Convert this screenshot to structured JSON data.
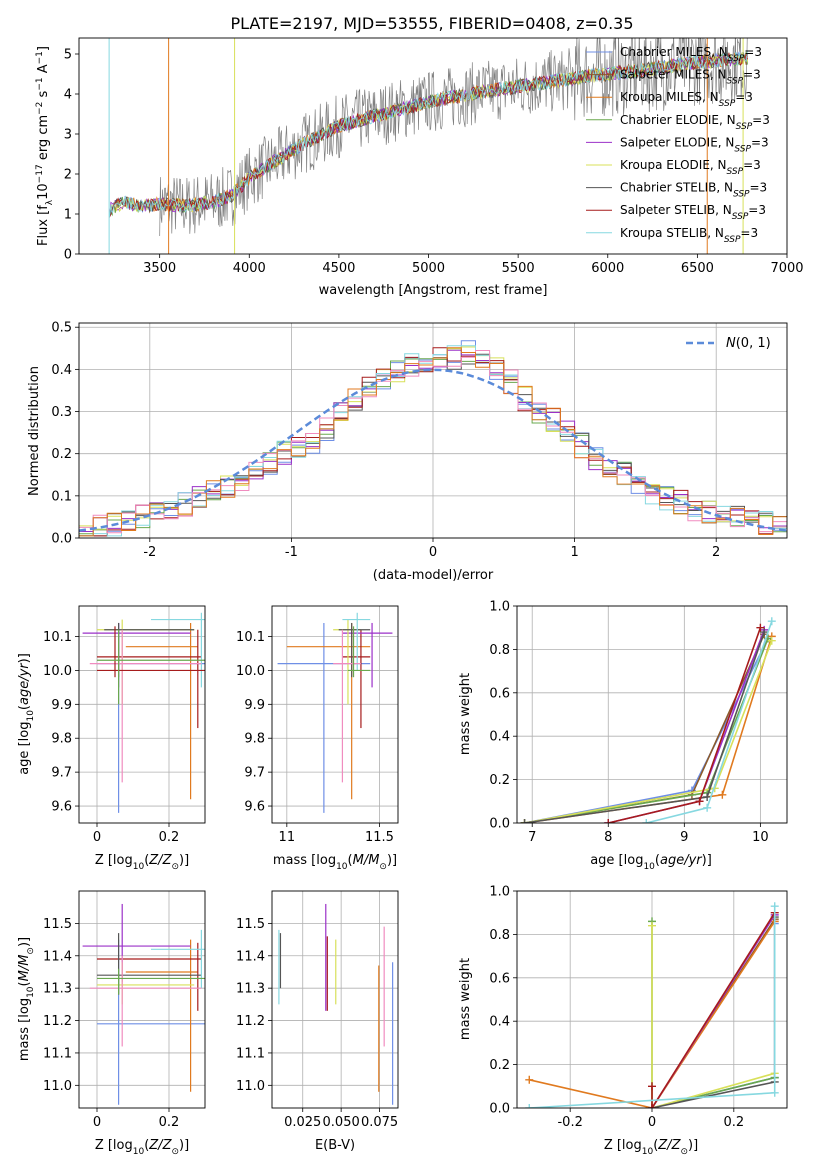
{
  "figure_title": "PLATE=2197, MJD=53555, FIBERID=0408, z=0.35",
  "colors": {
    "Chabrier MILES": "#6f8fe6",
    "Salpeter MILES": "#8b5a2b",
    "Kroupa MILES": "#e07a1f",
    "Chabrier ELODIE": "#6aa84f",
    "Salpeter ELODIE": "#9b30c8",
    "Kroupa ELODIE": "#d8e05a",
    "Chabrier STELIB": "#555555",
    "Salpeter STELIB": "#a61c1c",
    "Kroupa STELIB": "#86d8e0",
    "data": "#808080",
    "normal": "#5b8bd9",
    "pink": "#f08cbf"
  },
  "chart_data": [
    {
      "type": "line",
      "title": "PLATE=2197, MJD=53555, FIBERID=0408, z=0.35",
      "xlabel": "wavelength [Angstrom, rest frame]",
      "ylabel": "Flux [f_λ 10^-17 erg cm^-2 s^-1 A^-1]",
      "xlim": [
        3050,
        7000
      ],
      "ylim": [
        0,
        5.4
      ],
      "xticks": [
        3500,
        4000,
        4500,
        5000,
        5500,
        6000,
        6500,
        7000
      ],
      "yticks": [
        0,
        1,
        2,
        3,
        4,
        5
      ],
      "legend": "right",
      "legend_entries": [
        "Chabrier MILES, N_SSP=3",
        "Salpeter MILES, N_SSP=3",
        "Kroupa MILES, N_SSP=3",
        "Chabrier ELODIE, N_SSP=3",
        "Salpeter ELODIE, N_SSP=3",
        "Kroupa ELODIE, N_SSP=3",
        "Chabrier STELIB, N_SSP=3",
        "Salpeter STELIB, N_SSP=3",
        "Kroupa STELIB, N_SSP=3"
      ],
      "model_continuum": {
        "x": [
          3220,
          3300,
          3400,
          3500,
          3650,
          3800,
          3900,
          4000,
          4100,
          4300,
          4500,
          4700,
          5000,
          5300,
          5600,
          5900,
          6200,
          6500,
          6780
        ],
        "y": [
          1.1,
          1.3,
          1.2,
          1.25,
          1.2,
          1.3,
          1.45,
          1.9,
          2.2,
          2.75,
          3.2,
          3.45,
          3.8,
          4.05,
          4.25,
          4.45,
          4.6,
          4.8,
          4.9
        ]
      }
    },
    {
      "type": "bar",
      "xlabel": "(data-model)/error",
      "ylabel": "Normed distribution",
      "xlim": [
        -2.5,
        2.5
      ],
      "ylim": [
        0,
        0.51
      ],
      "xticks": [
        -2,
        -1,
        0,
        1,
        2
      ],
      "yticks": [
        0.0,
        0.1,
        0.2,
        0.3,
        0.4,
        0.5
      ],
      "legend": "top-right",
      "legend_entries": [
        "N(0,1)"
      ],
      "bin_centers": [
        -2.45,
        -2.35,
        -2.25,
        -2.15,
        -2.05,
        -1.95,
        -1.85,
        -1.75,
        -1.65,
        -1.55,
        -1.45,
        -1.35,
        -1.25,
        -1.15,
        -1.05,
        -0.95,
        -0.85,
        -0.75,
        -0.65,
        -0.55,
        -0.45,
        -0.35,
        -0.25,
        -0.15,
        -0.05,
        0.05,
        0.15,
        0.25,
        0.35,
        0.45,
        0.55,
        0.65,
        0.75,
        0.85,
        0.95,
        1.05,
        1.15,
        1.25,
        1.35,
        1.45,
        1.55,
        1.65,
        1.75,
        1.85,
        1.95,
        2.05,
        2.15,
        2.25,
        2.35,
        2.45
      ],
      "histogram": [
        0.022,
        0.025,
        0.03,
        0.04,
        0.05,
        0.06,
        0.075,
        0.08,
        0.1,
        0.11,
        0.125,
        0.14,
        0.16,
        0.175,
        0.2,
        0.215,
        0.23,
        0.26,
        0.3,
        0.33,
        0.36,
        0.38,
        0.4,
        0.41,
        0.42,
        0.43,
        0.43,
        0.44,
        0.43,
        0.4,
        0.37,
        0.33,
        0.3,
        0.28,
        0.25,
        0.22,
        0.19,
        0.17,
        0.15,
        0.13,
        0.11,
        0.095,
        0.085,
        0.07,
        0.06,
        0.055,
        0.045,
        0.04,
        0.035,
        0.03
      ]
    },
    {
      "type": "scatter",
      "xlabel": "Z [log10(Z/Z_⊙)]",
      "ylabel": "age  [log10(age/yr)]",
      "xlim": [
        -0.05,
        0.3
      ],
      "ylim": [
        9.55,
        10.19
      ],
      "xticks": [
        0.0,
        0.2
      ],
      "yticks": [
        9.6,
        9.7,
        9.8,
        9.9,
        10.0,
        10.1
      ]
    },
    {
      "type": "scatter",
      "xlabel": "mass [log10(M/M_⊙)]",
      "ylabel": "",
      "xlim": [
        10.92,
        11.6
      ],
      "ylim": [
        9.55,
        10.19
      ],
      "xticks": [
        11.0,
        11.5
      ],
      "yticks": [
        9.6,
        9.7,
        9.8,
        9.9,
        10.0,
        10.1
      ]
    },
    {
      "type": "line",
      "xlabel": "age  [log10(age/yr)]",
      "ylabel": "mass weight",
      "xlim": [
        6.8,
        10.35
      ],
      "ylim": [
        0,
        1
      ],
      "xticks": [
        7,
        8,
        9,
        10
      ],
      "yticks": [
        0.0,
        0.2,
        0.4,
        0.6,
        0.8,
        1.0
      ],
      "series": [
        {
          "x": [
            6.9,
            9.1,
            10.1
          ],
          "y": [
            0.0,
            0.15,
            0.85
          ]
        },
        {
          "x": [
            6.9,
            9.1,
            10.05
          ],
          "y": [
            0.0,
            0.13,
            0.87
          ]
        },
        {
          "x": [
            6.9,
            9.5,
            10.15
          ],
          "y": [
            0.0,
            0.13,
            0.86
          ]
        },
        {
          "x": [
            6.9,
            9.3,
            10.1
          ],
          "y": [
            0.0,
            0.14,
            0.85
          ]
        },
        {
          "x": [
            8.0,
            9.2,
            10.05
          ],
          "y": [
            0.0,
            0.1,
            0.89
          ]
        },
        {
          "x": [
            6.9,
            9.4,
            10.15
          ],
          "y": [
            0.0,
            0.16,
            0.84
          ]
        },
        {
          "x": [
            6.9,
            9.3,
            10.05
          ],
          "y": [
            0.0,
            0.12,
            0.88
          ]
        },
        {
          "x": [
            8.0,
            9.2,
            10.0
          ],
          "y": [
            0.0,
            0.1,
            0.9
          ]
        },
        {
          "x": [
            8.5,
            9.3,
            10.15
          ],
          "y": [
            0.0,
            0.07,
            0.93
          ]
        }
      ]
    },
    {
      "type": "scatter",
      "xlabel": "Z [log10(Z/Z_⊙)]",
      "ylabel": "mass [log10(M/M_⊙)]",
      "xlim": [
        -0.05,
        0.3
      ],
      "ylim": [
        10.93,
        11.6
      ],
      "xticks": [
        0.0,
        0.2
      ],
      "yticks": [
        11.0,
        11.1,
        11.2,
        11.3,
        11.4,
        11.5
      ]
    },
    {
      "type": "scatter",
      "xlabel": "E(B-V)",
      "ylabel": "",
      "xlim": [
        0.005,
        0.087
      ],
      "ylim": [
        10.93,
        11.6
      ],
      "xticks": [
        0.025,
        0.05,
        0.075
      ],
      "xtick_labels": [
        "0.025",
        "0.050",
        "0.075"
      ],
      "yticks": [
        11.0,
        11.1,
        11.2,
        11.3,
        11.4,
        11.5
      ]
    },
    {
      "type": "line",
      "xlabel": "Z [log10(Z/Z_⊙)]",
      "ylabel": "mass weight",
      "xlim": [
        -0.33,
        0.33
      ],
      "ylim": [
        0,
        1
      ],
      "xticks": [
        -0.2,
        0.0,
        0.2
      ],
      "yticks": [
        0.0,
        0.2,
        0.4,
        0.6,
        0.8,
        1.0
      ],
      "series": [
        {
          "x": [
            0.0,
            0.3,
            0.3
          ],
          "y": [
            0.0,
            0.14,
            0.85
          ]
        },
        {
          "x": [
            0.0,
            0.3
          ],
          "y": [
            0.0,
            0.87
          ]
        },
        {
          "x": [
            -0.3,
            0.0,
            0.3
          ],
          "y": [
            0.13,
            0.0,
            0.86
          ]
        },
        {
          "x": [
            0.0,
            0.0,
            0.3
          ],
          "y": [
            0.86,
            0.0,
            0.14
          ]
        },
        {
          "x": [
            0.0,
            0.3
          ],
          "y": [
            0.0,
            0.89
          ]
        },
        {
          "x": [
            0.0,
            0.0,
            0.3
          ],
          "y": [
            0.84,
            0.0,
            0.16
          ]
        },
        {
          "x": [
            0.0,
            0.3,
            0.3
          ],
          "y": [
            0.0,
            0.12,
            0.88
          ]
        },
        {
          "x": [
            0.0,
            0.0,
            0.3
          ],
          "y": [
            0.1,
            0.0,
            0.9
          ]
        },
        {
          "x": [
            -0.3,
            0.3,
            0.3
          ],
          "y": [
            0.0,
            0.07,
            0.93
          ]
        }
      ]
    }
  ]
}
